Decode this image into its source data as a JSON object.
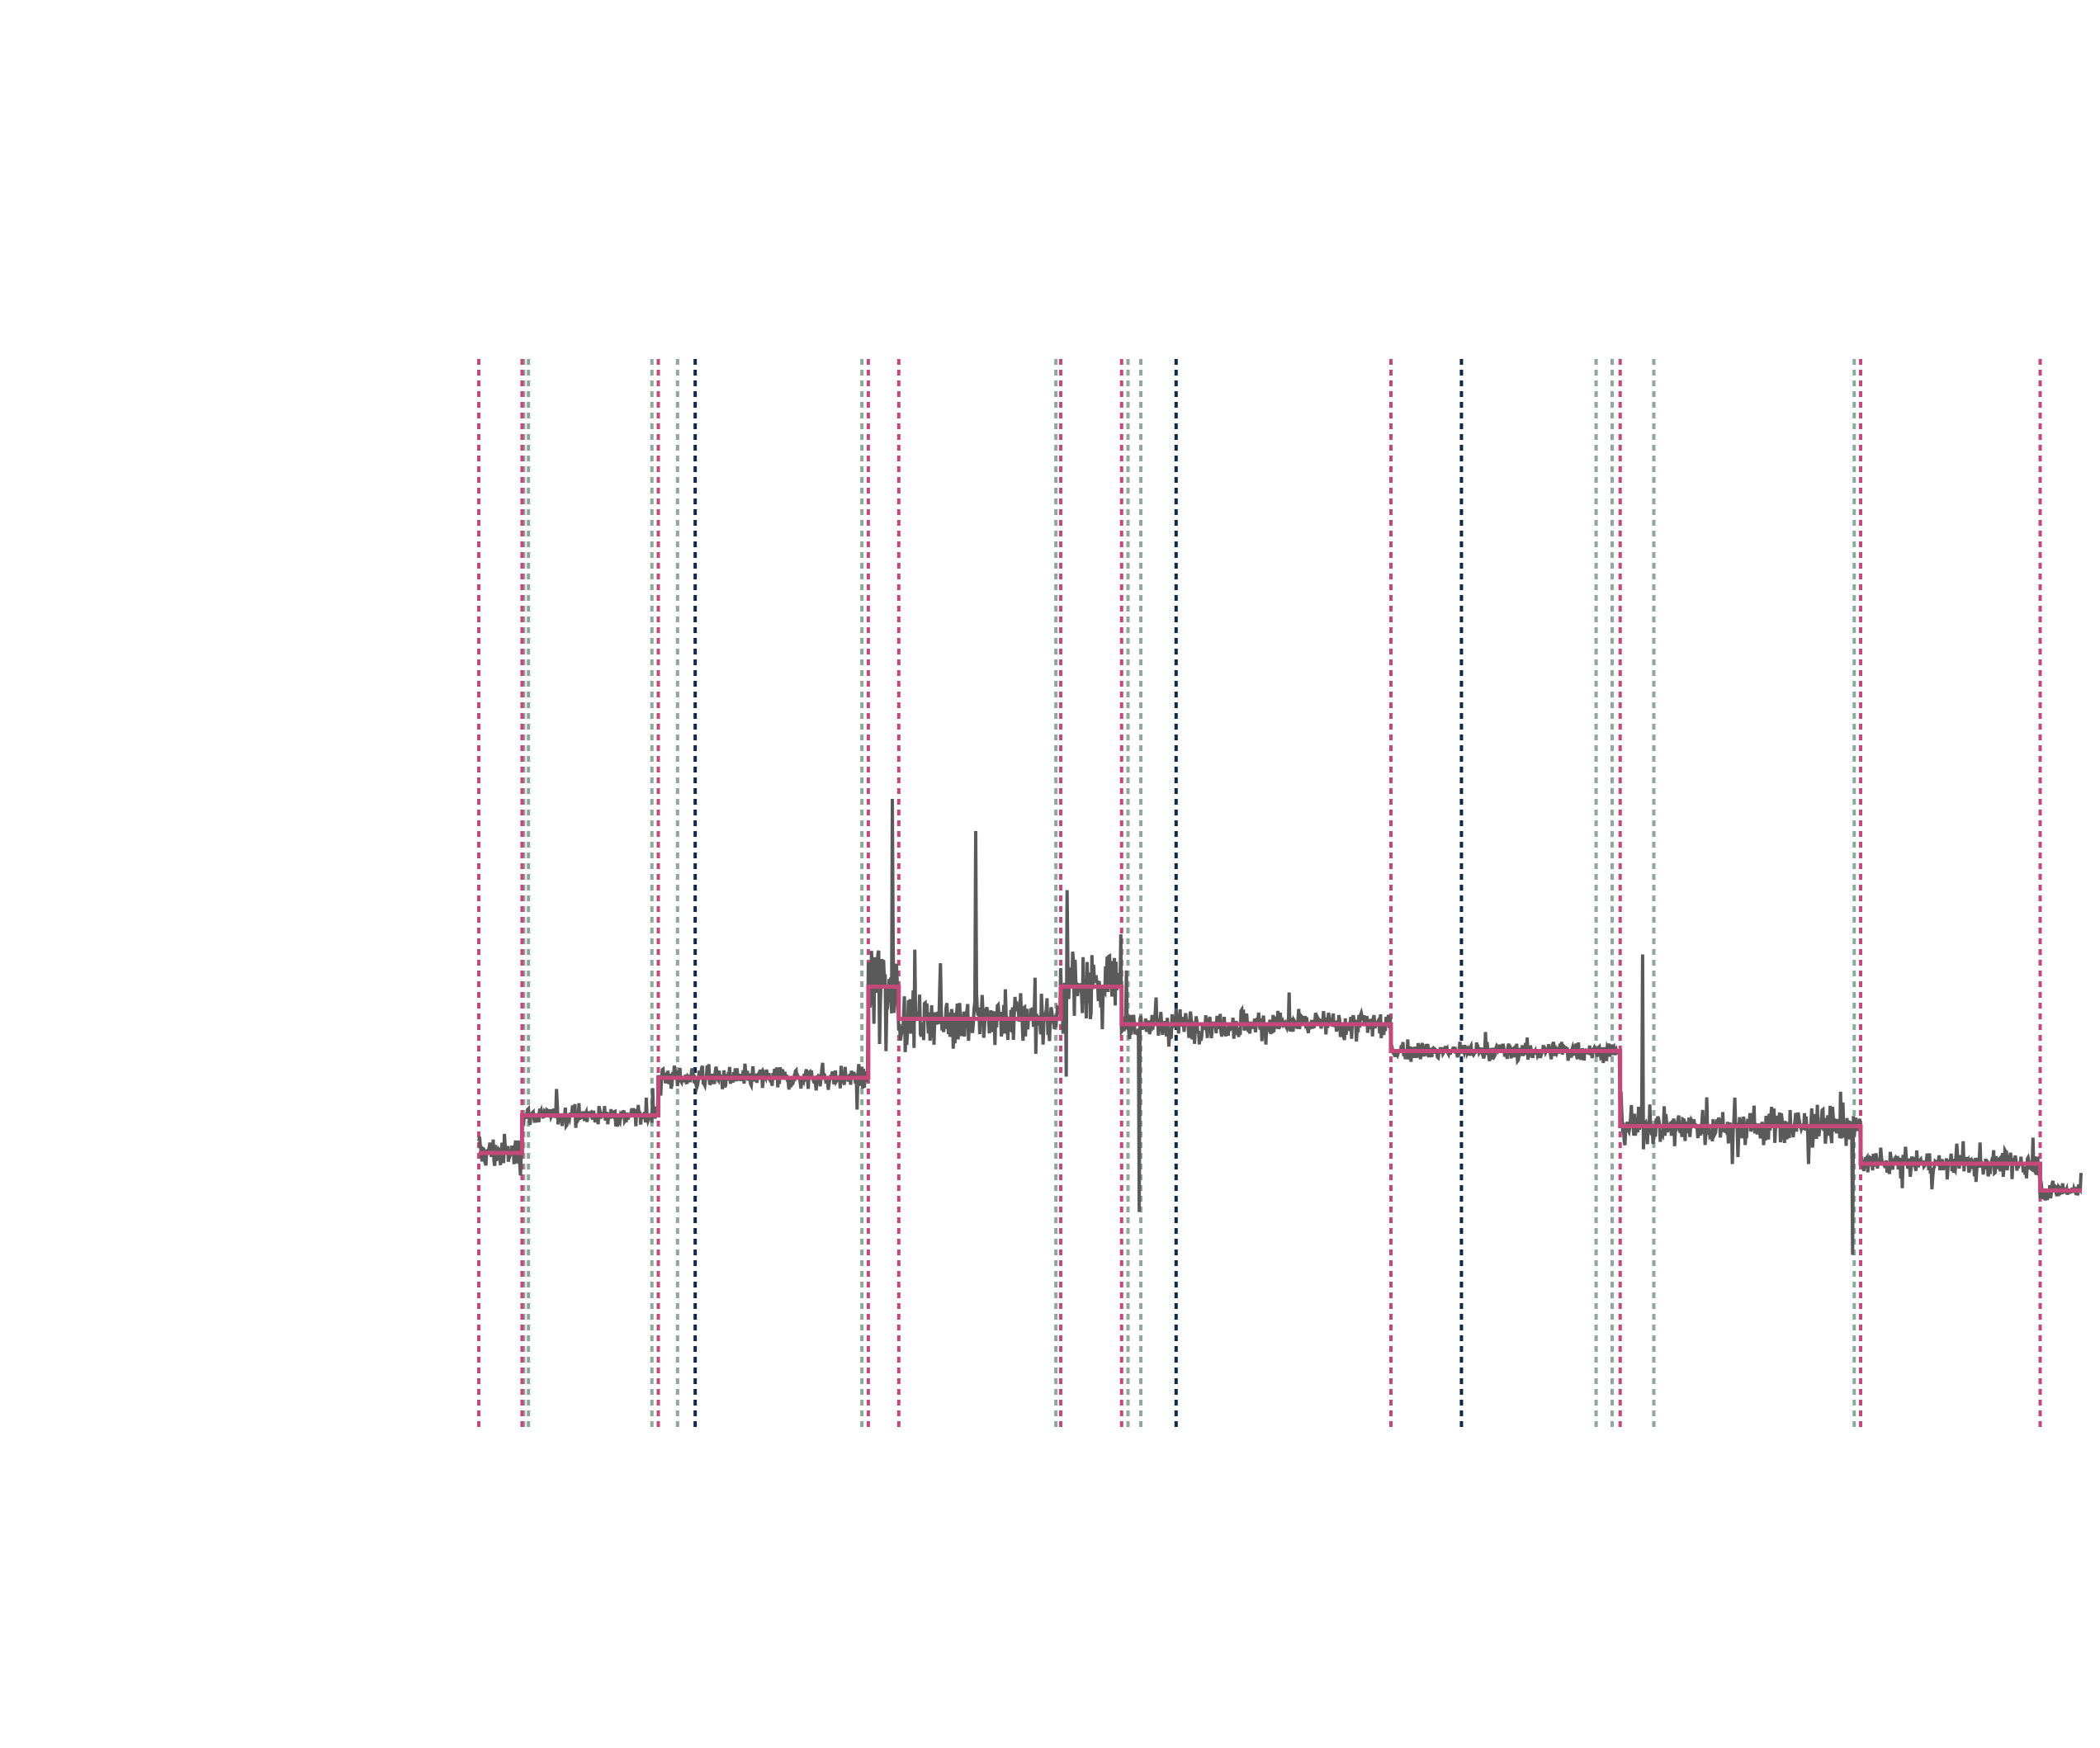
{
  "chart_data": {
    "type": "line",
    "title": "",
    "xlabel": "",
    "ylabel": "",
    "axes_visible": false,
    "grid": false,
    "xlim": [
      0,
      1000
    ],
    "ylim": [
      0,
      10
    ],
    "colors": {
      "signal": "#5a5a5a",
      "segment_means": "#c4497a",
      "changepoint_primary": "#c4497a",
      "changepoint_secondary": "#8fa89a",
      "changepoint_tertiary": "#0d2a4a"
    },
    "changepoints": {
      "primary": [
        0,
        27,
        112,
        243,
        262,
        363,
        401,
        569,
        712,
        862,
        974
      ],
      "secondary": [
        28,
        31,
        108,
        124,
        239,
        360,
        405,
        413,
        697,
        707,
        733,
        858
      ],
      "tertiary": [
        135,
        435,
        613
      ]
    },
    "segment_means": [
      {
        "x0": 0,
        "x1": 27,
        "y": 2.6
      },
      {
        "x0": 27,
        "x1": 112,
        "y": 2.95
      },
      {
        "x0": 112,
        "x1": 243,
        "y": 3.3
      },
      {
        "x0": 243,
        "x1": 262,
        "y": 4.15
      },
      {
        "x0": 262,
        "x1": 363,
        "y": 3.85
      },
      {
        "x0": 363,
        "x1": 401,
        "y": 4.15
      },
      {
        "x0": 401,
        "x1": 569,
        "y": 3.8
      },
      {
        "x0": 569,
        "x1": 712,
        "y": 3.55
      },
      {
        "x0": 712,
        "x1": 862,
        "y": 2.85
      },
      {
        "x0": 862,
        "x1": 974,
        "y": 2.5
      },
      {
        "x0": 974,
        "x1": 1000,
        "y": 2.25
      }
    ],
    "signal_segments": [
      {
        "x0": 0,
        "x1": 27,
        "mean": 2.6,
        "noise": 0.14
      },
      {
        "x0": 27,
        "x1": 112,
        "mean": 2.95,
        "noise": 0.07
      },
      {
        "x0": 112,
        "x1": 243,
        "mean": 3.3,
        "noise": 0.09
      },
      {
        "x0": 243,
        "x1": 262,
        "mean": 4.15,
        "noise": 0.45
      },
      {
        "x0": 262,
        "x1": 363,
        "mean": 3.85,
        "noise": 0.22
      },
      {
        "x0": 363,
        "x1": 401,
        "mean": 4.15,
        "noise": 0.3
      },
      {
        "x0": 401,
        "x1": 569,
        "mean": 3.8,
        "noise": 0.12
      },
      {
        "x0": 569,
        "x1": 712,
        "mean": 3.55,
        "noise": 0.07
      },
      {
        "x0": 712,
        "x1": 862,
        "mean": 2.85,
        "noise": 0.14
      },
      {
        "x0": 862,
        "x1": 974,
        "mean": 2.5,
        "noise": 0.1
      },
      {
        "x0": 974,
        "x1": 1000,
        "mean": 2.25,
        "noise": 0.08
      }
    ],
    "spikes": [
      {
        "x": 258,
        "y": 5.9
      },
      {
        "x": 310,
        "y": 5.6
      },
      {
        "x": 367,
        "y": 5.05
      },
      {
        "x": 412,
        "y": 2.05
      },
      {
        "x": 726,
        "y": 4.45
      },
      {
        "x": 857,
        "y": 1.65
      }
    ]
  }
}
